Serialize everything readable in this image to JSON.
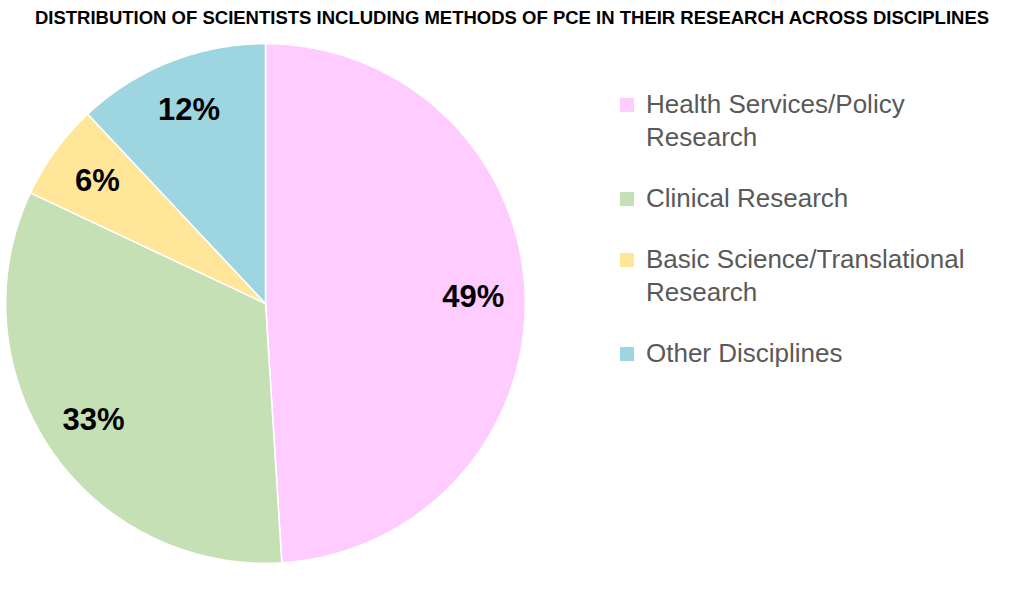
{
  "chart_data": {
    "type": "pie",
    "title": "DISTRIBUTION OF SCIENTISTS INCLUDING METHODS OF PCE IN THEIR RESEARCH ACROSS DISCIPLINES",
    "categories": [
      "Health Services/Policy Research",
      "Clinical Research",
      "Basic Science/Translational Research",
      "Other Disciplines"
    ],
    "values": [
      49,
      33,
      6,
      12
    ],
    "value_labels": [
      "49%",
      "33%",
      "6%",
      "12%"
    ],
    "colors": [
      "#ffccff",
      "#c5e0b4",
      "#ffe699",
      "#9dd5e0"
    ],
    "data_labels": true,
    "legend": "right"
  }
}
